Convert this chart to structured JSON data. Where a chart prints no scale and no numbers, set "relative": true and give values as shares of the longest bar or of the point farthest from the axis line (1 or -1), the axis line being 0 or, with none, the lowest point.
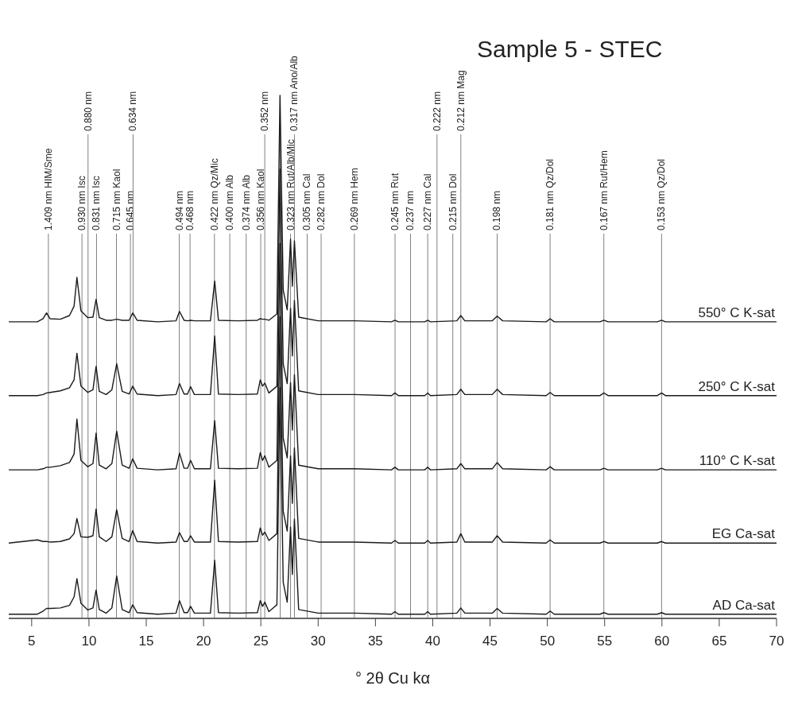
{
  "chart_data": {
    "type": "line",
    "title": "Sample 5 - STEC",
    "xlabel": "° 2θ  Cu kα",
    "relative": true,
    "grid": false,
    "marker": "none",
    "line_style": "solid",
    "xlim": [
      3,
      70
    ],
    "xticks": [
      5,
      10,
      15,
      20,
      25,
      30,
      35,
      40,
      45,
      50,
      55,
      60,
      65,
      70
    ],
    "x": [
      3,
      5.5,
      6.0,
      6.3,
      6.6,
      7.5,
      8.3,
      8.7,
      8.95,
      9.3,
      9.9,
      10.35,
      10.62,
      10.9,
      11.5,
      12.0,
      12.42,
      12.9,
      13.5,
      13.82,
      14.2,
      16,
      17.6,
      17.9,
      18.3,
      18.6,
      18.87,
      19.2,
      20.6,
      20.97,
      21.3,
      23,
      24.7,
      24.95,
      25.15,
      25.35,
      25.7,
      26.4,
      26.67,
      26.95,
      27.3,
      27.59,
      27.75,
      27.93,
      28.3,
      30,
      33.2,
      36.4,
      36.7,
      37.0,
      39.3,
      39.56,
      39.8,
      42.1,
      42.45,
      42.8,
      45.2,
      45.62,
      46.1,
      49.9,
      50.24,
      50.6,
      54.6,
      54.93,
      55.3,
      59.6,
      59.97,
      60.3,
      65,
      67.5,
      70
    ],
    "series": [
      {
        "name": "550° C K-sat",
        "color": "#1a1a1a",
        "values": [
          0.567,
          0.567,
          0.573,
          0.584,
          0.573,
          0.572,
          0.579,
          0.597,
          0.652,
          0.588,
          0.575,
          0.576,
          0.61,
          0.575,
          0.57,
          0.57,
          0.572,
          0.57,
          0.57,
          0.584,
          0.57,
          0.567,
          0.569,
          0.587,
          0.57,
          0.569,
          0.57,
          0.569,
          0.569,
          0.645,
          0.57,
          0.569,
          0.57,
          0.573,
          0.572,
          0.572,
          0.57,
          0.582,
          1.0,
          0.628,
          0.59,
          0.725,
          0.635,
          0.722,
          0.576,
          0.569,
          0.569,
          0.567,
          0.57,
          0.567,
          0.567,
          0.57,
          0.567,
          0.569,
          0.579,
          0.569,
          0.569,
          0.578,
          0.569,
          0.567,
          0.573,
          0.567,
          0.567,
          0.57,
          0.567,
          0.567,
          0.57,
          0.567,
          0.567,
          0.567,
          0.567
        ]
      },
      {
        "name": "250° C K-sat",
        "color": "#1a1a1a",
        "values": [
          0.426,
          0.426,
          0.428,
          0.431,
          0.432,
          0.435,
          0.441,
          0.456,
          0.507,
          0.444,
          0.432,
          0.437,
          0.482,
          0.434,
          0.428,
          0.437,
          0.487,
          0.434,
          0.429,
          0.444,
          0.429,
          0.426,
          0.428,
          0.449,
          0.429,
          0.429,
          0.443,
          0.428,
          0.428,
          0.54,
          0.429,
          0.428,
          0.429,
          0.456,
          0.444,
          0.45,
          0.431,
          0.444,
          0.859,
          0.487,
          0.449,
          0.593,
          0.502,
          0.608,
          0.435,
          0.428,
          0.428,
          0.426,
          0.431,
          0.426,
          0.426,
          0.431,
          0.426,
          0.428,
          0.438,
          0.428,
          0.428,
          0.438,
          0.428,
          0.426,
          0.432,
          0.426,
          0.426,
          0.431,
          0.426,
          0.426,
          0.431,
          0.426,
          0.426,
          0.426,
          0.426
        ]
      },
      {
        "name": "110° C K-sat",
        "color": "#1a1a1a",
        "values": [
          0.284,
          0.284,
          0.286,
          0.289,
          0.289,
          0.292,
          0.298,
          0.314,
          0.381,
          0.302,
          0.29,
          0.296,
          0.354,
          0.293,
          0.286,
          0.296,
          0.358,
          0.293,
          0.287,
          0.305,
          0.287,
          0.284,
          0.286,
          0.316,
          0.287,
          0.287,
          0.302,
          0.286,
          0.286,
          0.378,
          0.287,
          0.286,
          0.287,
          0.317,
          0.302,
          0.311,
          0.289,
          0.302,
          0.717,
          0.345,
          0.307,
          0.451,
          0.36,
          0.466,
          0.293,
          0.286,
          0.286,
          0.284,
          0.289,
          0.284,
          0.284,
          0.289,
          0.284,
          0.286,
          0.296,
          0.286,
          0.286,
          0.298,
          0.286,
          0.284,
          0.29,
          0.284,
          0.284,
          0.287,
          0.284,
          0.284,
          0.287,
          0.284,
          0.284,
          0.284,
          0.284
        ]
      },
      {
        "name": "EG Ca-sat",
        "color": "#1a1a1a",
        "values": [
          0.144,
          0.15,
          0.147,
          0.147,
          0.146,
          0.147,
          0.152,
          0.162,
          0.191,
          0.156,
          0.155,
          0.158,
          0.209,
          0.156,
          0.147,
          0.156,
          0.208,
          0.153,
          0.147,
          0.168,
          0.147,
          0.144,
          0.146,
          0.164,
          0.147,
          0.147,
          0.158,
          0.146,
          0.146,
          0.264,
          0.147,
          0.146,
          0.147,
          0.173,
          0.159,
          0.165,
          0.149,
          0.162,
          0.577,
          0.205,
          0.167,
          0.311,
          0.22,
          0.326,
          0.153,
          0.146,
          0.146,
          0.144,
          0.149,
          0.144,
          0.144,
          0.149,
          0.144,
          0.146,
          0.162,
          0.146,
          0.146,
          0.158,
          0.146,
          0.144,
          0.15,
          0.144,
          0.144,
          0.147,
          0.144,
          0.144,
          0.147,
          0.144,
          0.144,
          0.144,
          0.144
        ]
      },
      {
        "name": "AD Ca-sat",
        "color": "#1a1a1a",
        "values": [
          0.008,
          0.008,
          0.014,
          0.019,
          0.019,
          0.02,
          0.025,
          0.041,
          0.076,
          0.029,
          0.016,
          0.02,
          0.054,
          0.017,
          0.01,
          0.02,
          0.081,
          0.017,
          0.011,
          0.026,
          0.011,
          0.008,
          0.01,
          0.034,
          0.011,
          0.011,
          0.023,
          0.01,
          0.01,
          0.111,
          0.011,
          0.01,
          0.011,
          0.034,
          0.023,
          0.031,
          0.013,
          0.026,
          0.441,
          0.069,
          0.031,
          0.175,
          0.084,
          0.19,
          0.017,
          0.01,
          0.01,
          0.008,
          0.013,
          0.008,
          0.008,
          0.013,
          0.008,
          0.01,
          0.02,
          0.01,
          0.01,
          0.019,
          0.01,
          0.008,
          0.014,
          0.008,
          0.008,
          0.011,
          0.008,
          0.008,
          0.011,
          0.008,
          0.008,
          0.008,
          0.008
        ]
      }
    ],
    "ref_lines": [
      {
        "axis": "x",
        "value": 6.46,
        "label": "1.409 nm HIM/Sme",
        "color": "#808080"
      },
      {
        "axis": "x",
        "value": 9.39,
        "label": "0.930 nm Isc",
        "color": "#808080"
      },
      {
        "axis": "x",
        "value": 9.92,
        "label": "0.880 nm",
        "color": "#808080"
      },
      {
        "axis": "x",
        "value": 10.66,
        "label": "0.831 nm Isc",
        "color": "#808080"
      },
      {
        "axis": "x",
        "value": 12.4,
        "label": "0.715 nm Kaol",
        "color": "#808080"
      },
      {
        "axis": "x",
        "value": 13.62,
        "label": "0.645 nm",
        "color": "#808080"
      },
      {
        "axis": "x",
        "value": 13.85,
        "label": "0.634 nm",
        "color": "#808080"
      },
      {
        "axis": "x",
        "value": 17.88,
        "label": "0.494 nm",
        "color": "#808080"
      },
      {
        "axis": "x",
        "value": 18.82,
        "label": "0.468 nm",
        "color": "#808080"
      },
      {
        "axis": "x",
        "value": 20.95,
        "label": "0.422 nm Qz/Mic",
        "color": "#808080"
      },
      {
        "axis": "x",
        "value": 22.29,
        "label": "0.400 nm Alb",
        "color": "#808080"
      },
      {
        "axis": "x",
        "value": 23.72,
        "label": "0.374 nm Alb",
        "color": "#808080"
      },
      {
        "axis": "x",
        "value": 24.99,
        "label": "0.356 nm Kaol",
        "color": "#808080"
      },
      {
        "axis": "x",
        "value": 25.34,
        "label": "0.352 nm",
        "color": "#808080"
      },
      {
        "axis": "x",
        "value": 26.69,
        "label": null,
        "color": "#808080"
      },
      {
        "axis": "x",
        "value": 27.59,
        "label": "0.323 nm Rut/Alb/Mic",
        "color": "#808080"
      },
      {
        "axis": "x",
        "value": 27.93,
        "label": "0.317 nm Ano/Alb",
        "color": "#808080"
      },
      {
        "axis": "x",
        "value": 29.04,
        "label": "0.305 nm Cal",
        "color": "#808080"
      },
      {
        "axis": "x",
        "value": 30.26,
        "label": "0.282 nm Dol",
        "color": "#808080"
      },
      {
        "axis": "x",
        "value": 33.16,
        "label": "0.269 nm Hem",
        "color": "#808080"
      },
      {
        "axis": "x",
        "value": 36.71,
        "label": "0.245 nm Rut",
        "color": "#808080"
      },
      {
        "axis": "x",
        "value": 38.06,
        "label": "0.237 nm",
        "color": "#808080"
      },
      {
        "axis": "x",
        "value": 39.56,
        "label": "0.227 nm Cal",
        "color": "#808080"
      },
      {
        "axis": "x",
        "value": 40.37,
        "label": "0.222 nm",
        "color": "#808080"
      },
      {
        "axis": "x",
        "value": 41.75,
        "label": "0.215 nm Dol",
        "color": "#808080"
      },
      {
        "axis": "x",
        "value": 42.45,
        "label": "0.212 nm Mag",
        "color": "#808080"
      },
      {
        "axis": "x",
        "value": 45.62,
        "label": "0.198 nm",
        "color": "#808080"
      },
      {
        "axis": "x",
        "value": 50.24,
        "label": "0.181 nm Qz/Dol",
        "color": "#808080"
      },
      {
        "axis": "x",
        "value": 54.93,
        "label": "0.167 nm Rut/Hem",
        "color": "#808080"
      },
      {
        "axis": "x",
        "value": 59.97,
        "label": "0.153 nm Qz/Dol",
        "color": "#808080"
      }
    ]
  }
}
